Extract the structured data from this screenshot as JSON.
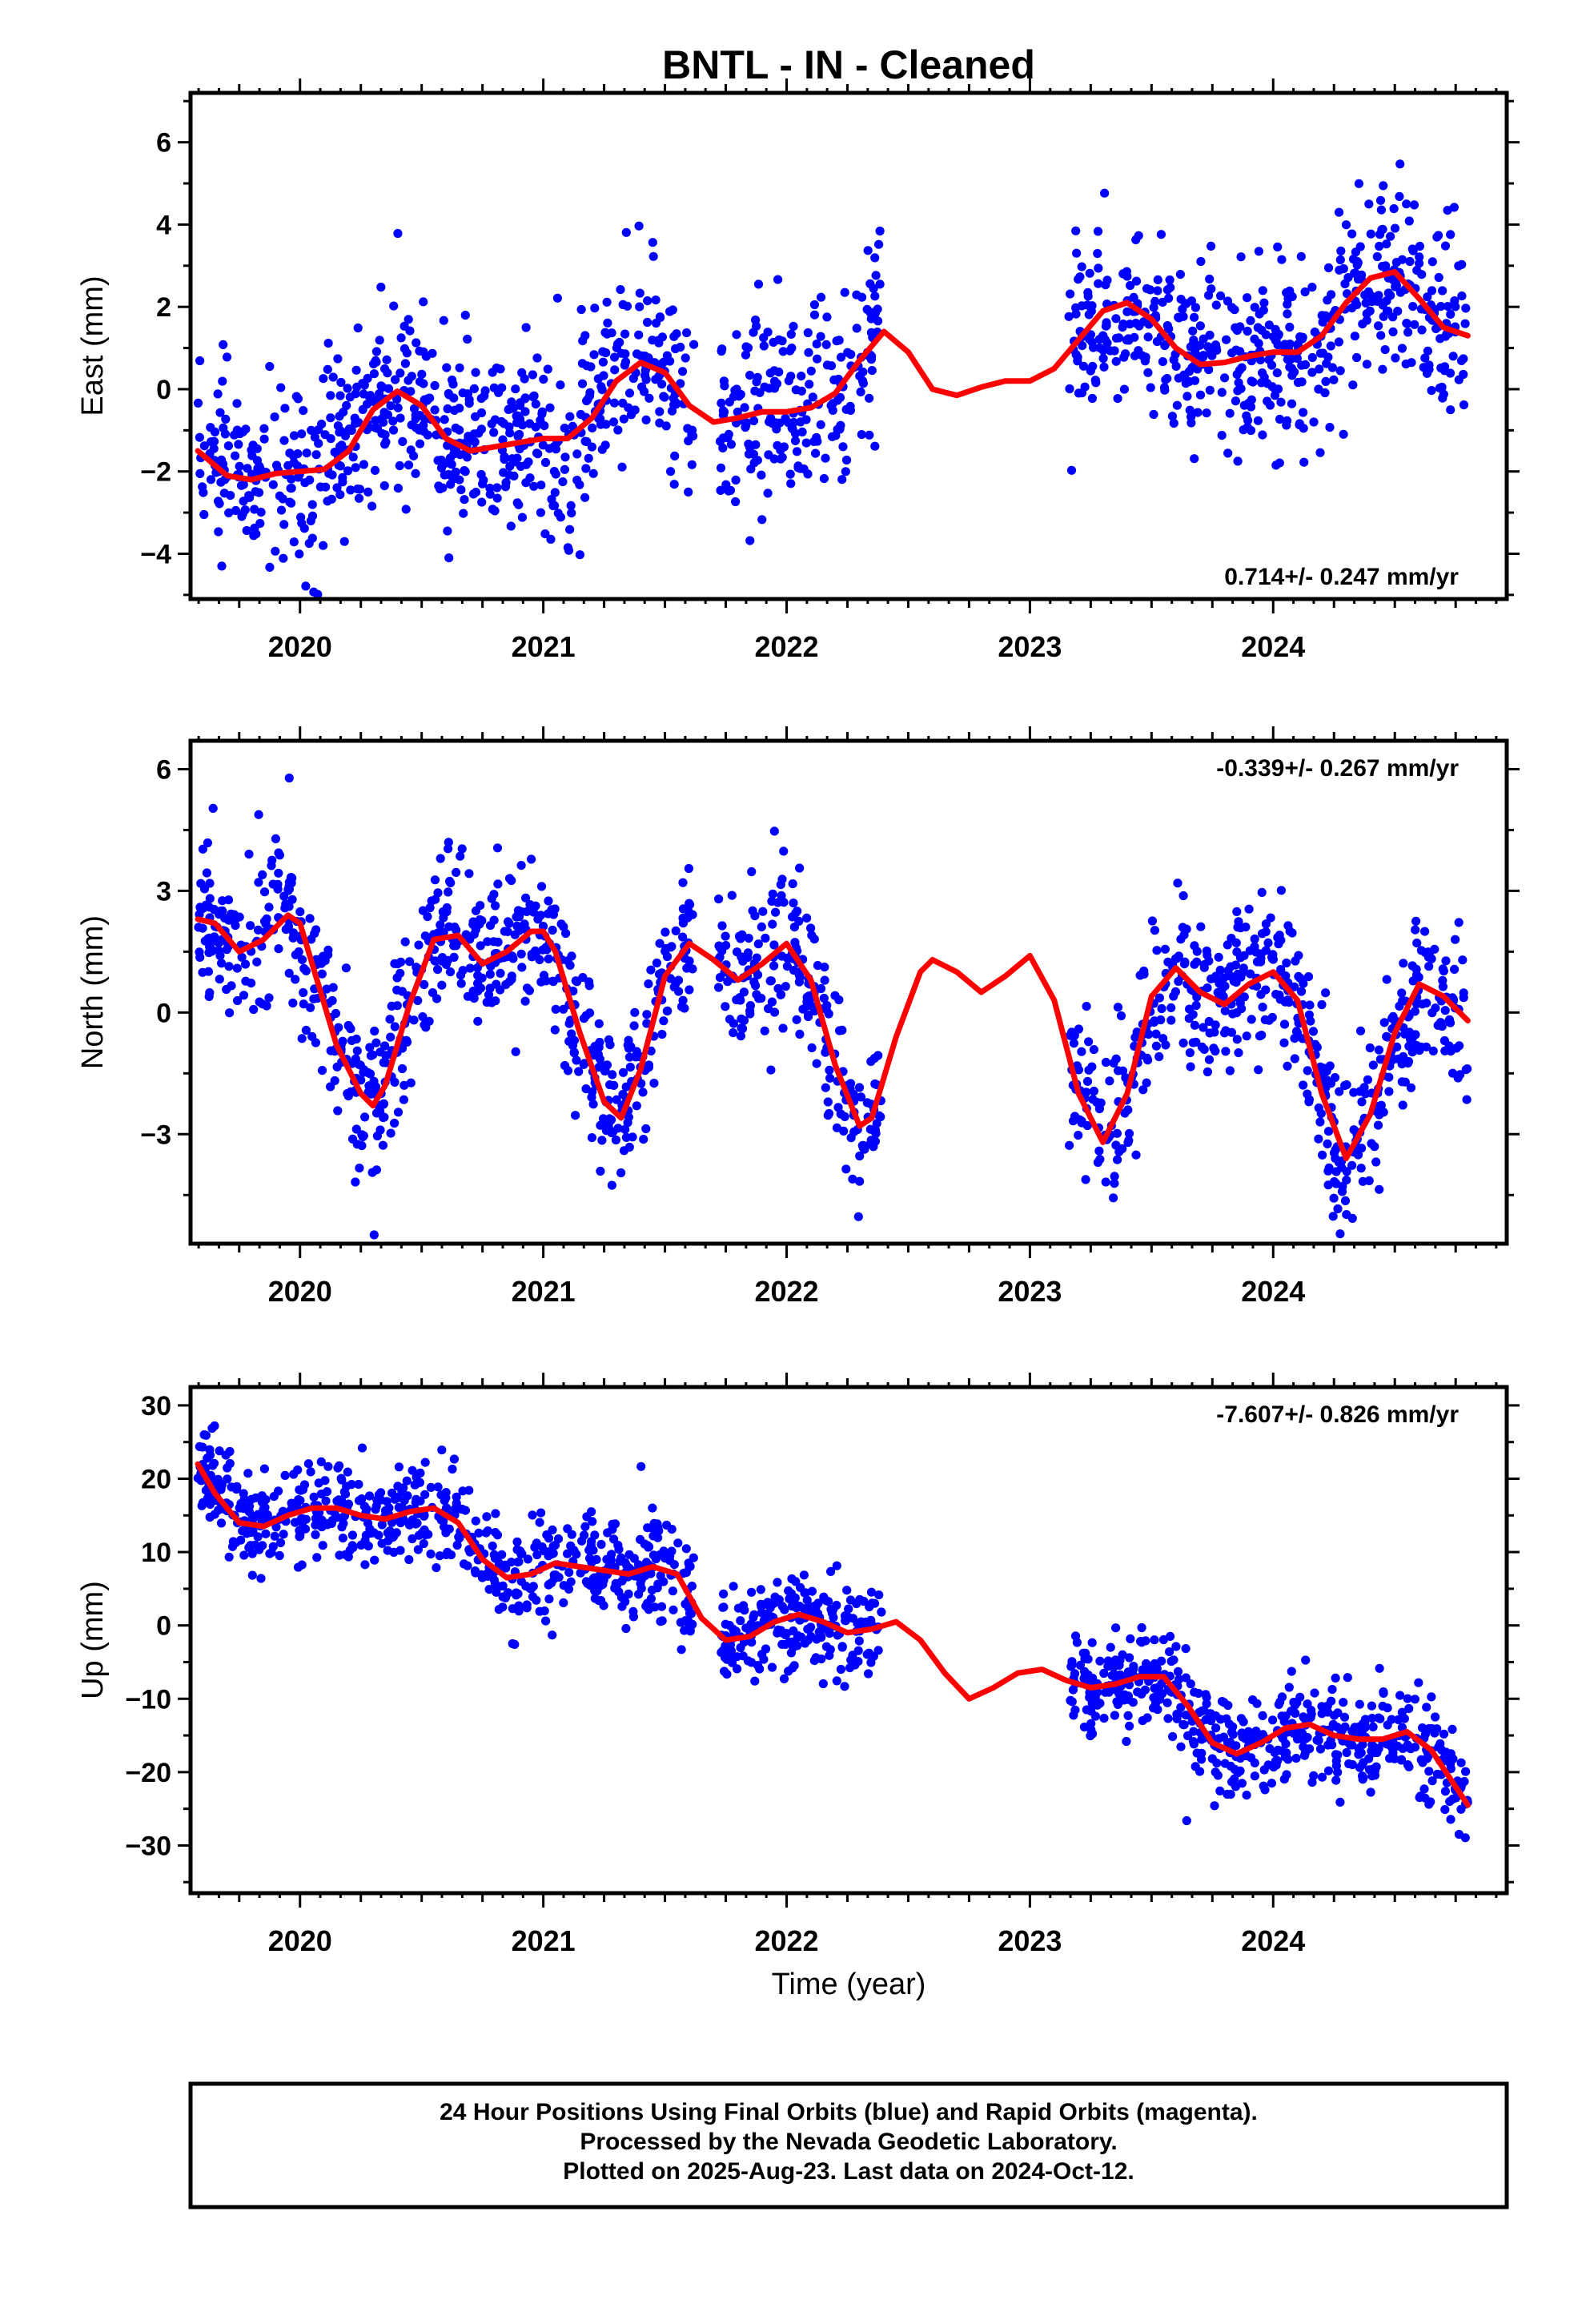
{
  "title": "BNTL  - IN - Cleaned",
  "footer": {
    "lines": [
      "24 Hour Positions Using Final Orbits (blue) and Rapid Orbits (magenta).",
      "Processed by the Nevada Geodetic Laboratory.",
      "Plotted on 2025-Aug-23. Last data on 2024-Oct-12."
    ]
  },
  "colors": {
    "data": "#0000ff",
    "model": "#ff0000",
    "frame": "#000000"
  },
  "chart_data": [
    {
      "type": "scatter",
      "component": "east",
      "ylabel": "East (mm)",
      "xlim": [
        2019.55,
        2024.96
      ],
      "ylim": [
        -5.1,
        7.2
      ],
      "yticks": [
        -4,
        -2,
        0,
        2,
        4,
        6
      ],
      "xticks": [
        2020,
        2021,
        2022,
        2023,
        2024
      ],
      "rate_label": "0.714+/- 0.247 mm/yr",
      "rate_position": "bottom-right",
      "grid": false,
      "data_segments": [
        [
          2019.58,
          2021.62
        ],
        [
          2021.72,
          2022.39
        ],
        [
          2023.16,
          2024.8
        ]
      ],
      "scatter_points": 1420,
      "noise_sd": 1.15,
      "model": {
        "x": [
          2019.58,
          2019.7,
          2019.8,
          2019.9,
          2020.0,
          2020.1,
          2020.2,
          2020.3,
          2020.4,
          2020.5,
          2020.6,
          2020.7,
          2020.8,
          2020.9,
          2021.0,
          2021.1,
          2021.2,
          2021.3,
          2021.4,
          2021.5,
          2021.6,
          2021.7,
          2021.8,
          2021.9,
          2022.0,
          2022.1,
          2022.2,
          2022.3,
          2022.4,
          2022.5,
          2022.6,
          2022.7,
          2022.8,
          2022.9,
          2023.0,
          2023.1,
          2023.2,
          2023.3,
          2023.4,
          2023.5,
          2023.6,
          2023.7,
          2023.8,
          2023.9,
          2024.0,
          2024.1,
          2024.2,
          2024.3,
          2024.4,
          2024.5,
          2024.6,
          2024.7,
          2024.8
        ],
        "y": [
          -1.5,
          -2.1,
          -2.2,
          -2.05,
          -2.0,
          -1.95,
          -1.5,
          -0.5,
          -0.05,
          -0.4,
          -1.2,
          -1.5,
          -1.4,
          -1.3,
          -1.2,
          -1.2,
          -0.7,
          0.2,
          0.65,
          0.4,
          -0.4,
          -0.8,
          -0.7,
          -0.55,
          -0.55,
          -0.45,
          -0.1,
          0.7,
          1.4,
          0.9,
          0.0,
          -0.15,
          0.05,
          0.2,
          0.2,
          0.5,
          1.2,
          1.9,
          2.1,
          1.7,
          1.0,
          0.6,
          0.65,
          0.8,
          0.9,
          0.9,
          1.3,
          2.1,
          2.7,
          2.85,
          2.2,
          1.5,
          1.3
        ]
      }
    },
    {
      "type": "scatter",
      "component": "north",
      "ylabel": "North (mm)",
      "xlim": [
        2019.55,
        2024.96
      ],
      "ylim": [
        -5.7,
        6.7
      ],
      "yticks": [
        -3,
        0,
        3,
        6
      ],
      "xticks": [
        2020,
        2021,
        2022,
        2023,
        2024
      ],
      "rate_label": "-0.339+/- 0.267 mm/yr",
      "rate_position": "top-right",
      "grid": false,
      "data_segments": [
        [
          2019.58,
          2021.62
        ],
        [
          2021.72,
          2022.39
        ],
        [
          2023.16,
          2024.8
        ]
      ],
      "scatter_points": 1420,
      "noise_sd": 0.95,
      "model": {
        "x": [
          2019.58,
          2019.65,
          2019.75,
          2019.85,
          2019.95,
          2020.0,
          2020.05,
          2020.15,
          2020.25,
          2020.3,
          2020.35,
          2020.45,
          2020.55,
          2020.65,
          2020.75,
          2020.85,
          2020.95,
          2021.0,
          2021.05,
          2021.15,
          2021.25,
          2021.32,
          2021.4,
          2021.5,
          2021.6,
          2021.7,
          2021.8,
          2021.9,
          2022.0,
          2022.1,
          2022.2,
          2022.3,
          2022.35,
          2022.45,
          2022.55,
          2022.6,
          2022.7,
          2022.8,
          2022.9,
          2023.0,
          2023.1,
          2023.2,
          2023.3,
          2023.4,
          2023.5,
          2023.6,
          2023.7,
          2023.8,
          2023.9,
          2024.0,
          2024.1,
          2024.2,
          2024.3,
          2024.4,
          2024.5,
          2024.6,
          2024.7,
          2024.8
        ],
        "y": [
          2.3,
          2.2,
          1.5,
          1.8,
          2.4,
          2.2,
          1.2,
          -0.8,
          -2.0,
          -2.3,
          -1.8,
          0.2,
          1.8,
          1.9,
          1.2,
          1.5,
          2.0,
          2.0,
          1.5,
          -0.5,
          -2.2,
          -2.6,
          -1.4,
          0.9,
          1.7,
          1.3,
          0.8,
          1.2,
          1.7,
          0.8,
          -1.3,
          -2.8,
          -2.6,
          -0.6,
          1.0,
          1.3,
          1.0,
          0.5,
          0.9,
          1.4,
          0.3,
          -2.0,
          -3.2,
          -2.0,
          0.4,
          1.1,
          0.5,
          0.2,
          0.7,
          1.0,
          0.3,
          -2.0,
          -3.6,
          -2.5,
          -0.5,
          0.7,
          0.4,
          -0.2
        ]
      }
    },
    {
      "type": "scatter",
      "component": "up",
      "ylabel": "Up (mm)",
      "xlabel": "Time (year)",
      "xlim": [
        2019.55,
        2024.96
      ],
      "ylim": [
        -36.5,
        32.5
      ],
      "yticks": [
        -30,
        -20,
        -10,
        0,
        10,
        20,
        30
      ],
      "xticks": [
        2020,
        2021,
        2022,
        2023,
        2024
      ],
      "rate_label": "-7.607+/- 0.826 mm/yr",
      "rate_position": "top-right",
      "grid": false,
      "data_segments": [
        [
          2019.58,
          2021.62
        ],
        [
          2021.72,
          2022.39
        ],
        [
          2023.16,
          2024.8
        ]
      ],
      "scatter_points": 1420,
      "noise_sd": 3.3,
      "model": {
        "x": [
          2019.58,
          2019.65,
          2019.75,
          2019.85,
          2019.95,
          2020.05,
          2020.15,
          2020.25,
          2020.35,
          2020.45,
          2020.55,
          2020.65,
          2020.75,
          2020.85,
          2020.95,
          2021.05,
          2021.15,
          2021.25,
          2021.35,
          2021.45,
          2021.55,
          2021.65,
          2021.75,
          2021.85,
          2021.95,
          2022.05,
          2022.15,
          2022.25,
          2022.35,
          2022.45,
          2022.55,
          2022.65,
          2022.75,
          2022.85,
          2022.95,
          2023.05,
          2023.15,
          2023.25,
          2023.35,
          2023.45,
          2023.55,
          2023.65,
          2023.75,
          2023.85,
          2023.95,
          2024.05,
          2024.15,
          2024.25,
          2024.35,
          2024.45,
          2024.55,
          2024.65,
          2024.75,
          2024.8
        ],
        "y": [
          22.0,
          18.0,
          14.0,
          13.5,
          15.0,
          16.0,
          16.0,
          15.0,
          14.5,
          15.5,
          16.0,
          14.0,
          9.0,
          6.5,
          7.0,
          8.5,
          8.0,
          7.5,
          7.0,
          8.0,
          7.0,
          1.0,
          -2.0,
          -1.5,
          0.5,
          1.5,
          0.5,
          -1.0,
          -0.5,
          0.5,
          -2.0,
          -6.5,
          -10.0,
          -8.5,
          -6.5,
          -6.0,
          -7.5,
          -8.5,
          -8.0,
          -7.0,
          -7.0,
          -11.0,
          -16.0,
          -17.5,
          -16.0,
          -14.0,
          -13.5,
          -15.0,
          -15.5,
          -15.5,
          -14.5,
          -17.0,
          -22.0,
          -24.5
        ]
      }
    }
  ]
}
